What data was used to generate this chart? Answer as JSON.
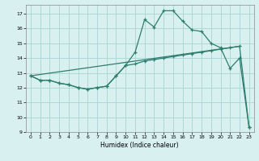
{
  "title": "",
  "xlabel": "Humidex (Indice chaleur)",
  "bg_color": "#d8f0f0",
  "grid_color": "#b0d8d8",
  "line_color": "#2e7d6e",
  "xlim": [
    -0.5,
    23.5
  ],
  "ylim": [
    9,
    17.6
  ],
  "yticks": [
    9,
    10,
    11,
    12,
    13,
    14,
    15,
    16,
    17
  ],
  "xticks": [
    0,
    1,
    2,
    3,
    4,
    5,
    6,
    7,
    8,
    9,
    10,
    11,
    12,
    13,
    14,
    15,
    16,
    17,
    18,
    19,
    20,
    21,
    22,
    23
  ],
  "curve1_x": [
    0,
    1,
    2,
    3,
    4,
    5,
    6,
    7,
    8,
    9,
    10,
    11,
    12,
    13,
    14,
    15,
    16,
    17,
    18,
    19,
    20,
    21,
    22,
    23
  ],
  "curve1_y": [
    12.8,
    12.5,
    12.5,
    12.3,
    12.2,
    12.0,
    11.9,
    12.0,
    12.1,
    12.8,
    13.5,
    14.4,
    16.6,
    16.1,
    17.2,
    17.2,
    16.5,
    15.9,
    15.8,
    15.0,
    14.7,
    13.3,
    14.0,
    9.3
  ],
  "curve2_x": [
    0,
    1,
    2,
    3,
    4,
    5,
    6,
    7,
    8,
    9,
    10,
    11,
    12,
    13,
    14,
    15,
    16,
    17,
    18,
    19,
    20,
    21,
    22,
    23
  ],
  "curve2_y": [
    12.8,
    12.5,
    12.5,
    12.3,
    12.2,
    12.0,
    11.9,
    12.0,
    12.1,
    12.8,
    13.5,
    13.6,
    13.8,
    13.9,
    14.0,
    14.1,
    14.2,
    14.3,
    14.4,
    14.5,
    14.6,
    14.7,
    14.8,
    9.3
  ],
  "curve3_x": [
    0,
    22
  ],
  "curve3_y": [
    12.8,
    14.8
  ]
}
